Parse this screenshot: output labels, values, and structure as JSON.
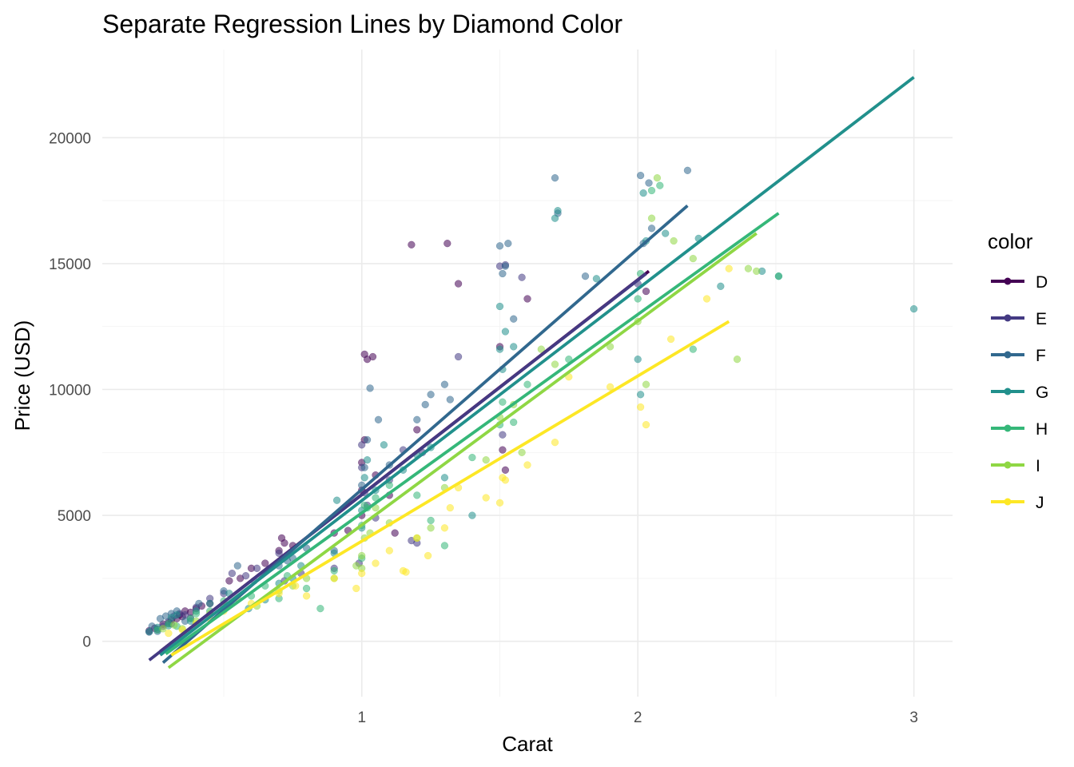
{
  "chart_data": {
    "type": "scatter",
    "title": "Separate Regression Lines by Diamond Color",
    "xlabel": "Carat",
    "ylabel": "Price (USD)",
    "xlim": [
      0.06,
      3.14
    ],
    "ylim": [
      -2200,
      23500
    ],
    "x_ticks": [
      1,
      2,
      3
    ],
    "x_tick_labels": [
      "1",
      "2",
      "3"
    ],
    "y_ticks": [
      0,
      5000,
      10000,
      15000,
      20000
    ],
    "y_tick_labels": [
      "0",
      "5000",
      "10000",
      "15000",
      "20000"
    ],
    "x_minor_ticks": [
      0.5,
      1.5,
      2.5
    ],
    "y_minor_ticks": [
      2500,
      7500,
      12500,
      17500
    ],
    "grid": true,
    "legend": {
      "title": "color",
      "position": "right"
    },
    "series": [
      {
        "name": "D",
        "color": "#440154",
        "line": {
          "x": [
            0.27,
            2.04
          ],
          "y": [
            -400,
            14700
          ]
        },
        "points": [
          [
            0.23,
            420
          ],
          [
            0.25,
            520
          ],
          [
            0.28,
            680
          ],
          [
            0.3,
            720
          ],
          [
            0.31,
            850
          ],
          [
            0.33,
            900
          ],
          [
            0.34,
            1050
          ],
          [
            0.35,
            980
          ],
          [
            0.36,
            1200
          ],
          [
            0.38,
            1150
          ],
          [
            0.4,
            1300
          ],
          [
            0.42,
            1400
          ],
          [
            0.45,
            1500
          ],
          [
            0.52,
            2400
          ],
          [
            0.56,
            2500
          ],
          [
            0.6,
            2900
          ],
          [
            0.65,
            3100
          ],
          [
            0.7,
            3600
          ],
          [
            0.71,
            4100
          ],
          [
            0.72,
            3900
          ],
          [
            0.75,
            3800
          ],
          [
            0.9,
            4300
          ],
          [
            0.95,
            4400
          ],
          [
            1.0,
            5000
          ],
          [
            1.0,
            6000
          ],
          [
            1.0,
            7100
          ],
          [
            1.01,
            8000
          ],
          [
            1.01,
            11400
          ],
          [
            1.02,
            11200
          ],
          [
            1.04,
            11300
          ],
          [
            1.05,
            6600
          ],
          [
            1.1,
            5800
          ],
          [
            1.12,
            4300
          ],
          [
            1.18,
            15750
          ],
          [
            1.2,
            8400
          ],
          [
            1.31,
            15800
          ],
          [
            1.35,
            14200
          ],
          [
            1.5,
            11700
          ],
          [
            1.51,
            7600
          ],
          [
            1.52,
            6800
          ],
          [
            1.6,
            13600
          ],
          [
            2.03,
            13900
          ]
        ]
      },
      {
        "name": "E",
        "color": "#443A83",
        "line": {
          "x": [
            0.23,
            2.03
          ],
          "y": [
            -750,
            14600
          ]
        },
        "points": [
          [
            0.23,
            370
          ],
          [
            0.26,
            480
          ],
          [
            0.28,
            600
          ],
          [
            0.3,
            780
          ],
          [
            0.31,
            700
          ],
          [
            0.32,
            1000
          ],
          [
            0.34,
            1100
          ],
          [
            0.36,
            1050
          ],
          [
            0.38,
            920
          ],
          [
            0.4,
            1350
          ],
          [
            0.45,
            1700
          ],
          [
            0.5,
            1900
          ],
          [
            0.53,
            2700
          ],
          [
            0.58,
            2600
          ],
          [
            0.62,
            2900
          ],
          [
            0.7,
            3500
          ],
          [
            0.72,
            2400
          ],
          [
            0.78,
            2700
          ],
          [
            0.9,
            2900
          ],
          [
            0.99,
            3100
          ],
          [
            1.0,
            6900
          ],
          [
            1.0,
            7800
          ],
          [
            1.01,
            5900
          ],
          [
            1.02,
            5400
          ],
          [
            1.05,
            4900
          ],
          [
            1.1,
            6400
          ],
          [
            1.15,
            7600
          ],
          [
            1.18,
            4000
          ],
          [
            1.2,
            3900
          ],
          [
            1.22,
            7500
          ],
          [
            1.35,
            11300
          ],
          [
            1.5,
            14900
          ],
          [
            1.52,
            14950
          ],
          [
            1.58,
            14450
          ],
          [
            1.51,
            8200
          ],
          [
            2.0,
            14200
          ]
        ]
      },
      {
        "name": "F",
        "color": "#31688E",
        "line": {
          "x": [
            0.28,
            2.18
          ],
          "y": [
            -850,
            17300
          ]
        },
        "points": [
          [
            0.24,
            600
          ],
          [
            0.26,
            400
          ],
          [
            0.27,
            900
          ],
          [
            0.29,
            1000
          ],
          [
            0.31,
            1100
          ],
          [
            0.33,
            1200
          ],
          [
            0.36,
            800
          ],
          [
            0.41,
            1500
          ],
          [
            0.5,
            2000
          ],
          [
            0.55,
            3000
          ],
          [
            0.61,
            2400
          ],
          [
            0.7,
            3000
          ],
          [
            0.73,
            3200
          ],
          [
            0.75,
            3300
          ],
          [
            0.8,
            3700
          ],
          [
            0.9,
            3600
          ],
          [
            1.0,
            6200
          ],
          [
            1.01,
            6900
          ],
          [
            1.02,
            8000
          ],
          [
            1.03,
            10050
          ],
          [
            1.06,
            8800
          ],
          [
            1.1,
            7000
          ],
          [
            1.2,
            8800
          ],
          [
            1.23,
            9400
          ],
          [
            1.25,
            9800
          ],
          [
            1.3,
            10200
          ],
          [
            1.32,
            9600
          ],
          [
            1.5,
            15700
          ],
          [
            1.51,
            14600
          ],
          [
            1.52,
            14900
          ],
          [
            1.53,
            15800
          ],
          [
            1.55,
            12800
          ],
          [
            1.7,
            18400
          ],
          [
            1.71,
            17000
          ],
          [
            1.81,
            14500
          ],
          [
            2.01,
            18500
          ],
          [
            2.04,
            18200
          ],
          [
            2.05,
            16400
          ],
          [
            2.18,
            18700
          ],
          [
            2.02,
            15800
          ]
        ]
      },
      {
        "name": "G",
        "color": "#21908C",
        "line": {
          "x": [
            0.27,
            3.0
          ],
          "y": [
            -550,
            22400
          ]
        },
        "points": [
          [
            0.23,
            380
          ],
          [
            0.26,
            550
          ],
          [
            0.3,
            620
          ],
          [
            0.31,
            940
          ],
          [
            0.33,
            1050
          ],
          [
            0.38,
            800
          ],
          [
            0.4,
            1200
          ],
          [
            0.45,
            1500
          ],
          [
            0.52,
            1900
          ],
          [
            0.59,
            1300
          ],
          [
            0.65,
            1650
          ],
          [
            0.7,
            2300
          ],
          [
            0.75,
            2500
          ],
          [
            0.78,
            3000
          ],
          [
            0.9,
            3500
          ],
          [
            0.91,
            5600
          ],
          [
            1.0,
            4500
          ],
          [
            1.0,
            5200
          ],
          [
            1.01,
            6500
          ],
          [
            1.02,
            7200
          ],
          [
            1.05,
            6000
          ],
          [
            1.08,
            7800
          ],
          [
            1.15,
            6800
          ],
          [
            1.2,
            7400
          ],
          [
            1.25,
            7700
          ],
          [
            1.3,
            6500
          ],
          [
            1.4,
            5000
          ],
          [
            1.5,
            13300
          ],
          [
            1.5,
            11600
          ],
          [
            1.51,
            10800
          ],
          [
            1.52,
            12300
          ],
          [
            1.55,
            11700
          ],
          [
            1.7,
            16800
          ],
          [
            1.71,
            17100
          ],
          [
            1.85,
            14400
          ],
          [
            2.0,
            11200
          ],
          [
            2.01,
            9800
          ],
          [
            2.02,
            17800
          ],
          [
            2.03,
            15900
          ],
          [
            2.1,
            16200
          ],
          [
            2.22,
            16000
          ],
          [
            2.45,
            14700
          ],
          [
            2.51,
            14500
          ],
          [
            3.0,
            13200
          ],
          [
            2.3,
            14100
          ]
        ]
      },
      {
        "name": "H",
        "color": "#35B779",
        "line": {
          "x": [
            0.29,
            2.51
          ],
          "y": [
            -500,
            17000
          ]
        },
        "points": [
          [
            0.26,
            450
          ],
          [
            0.3,
            700
          ],
          [
            0.33,
            600
          ],
          [
            0.38,
            900
          ],
          [
            0.4,
            1100
          ],
          [
            0.45,
            1200
          ],
          [
            0.5,
            1600
          ],
          [
            0.6,
            1800
          ],
          [
            0.65,
            2200
          ],
          [
            0.7,
            1700
          ],
          [
            0.73,
            2600
          ],
          [
            0.8,
            2100
          ],
          [
            0.85,
            1300
          ],
          [
            0.9,
            2800
          ],
          [
            1.0,
            3300
          ],
          [
            1.0,
            4600
          ],
          [
            1.01,
            5400
          ],
          [
            1.02,
            5300
          ],
          [
            1.05,
            5700
          ],
          [
            1.1,
            6200
          ],
          [
            1.2,
            5800
          ],
          [
            1.25,
            4800
          ],
          [
            1.3,
            3800
          ],
          [
            1.4,
            7300
          ],
          [
            1.5,
            8600
          ],
          [
            1.51,
            9500
          ],
          [
            1.55,
            8700
          ],
          [
            1.6,
            10200
          ],
          [
            1.75,
            11200
          ],
          [
            2.0,
            13600
          ],
          [
            2.01,
            14600
          ],
          [
            2.05,
            17900
          ],
          [
            2.08,
            18100
          ],
          [
            2.2,
            11600
          ],
          [
            2.51,
            14500
          ]
        ]
      },
      {
        "name": "I",
        "color": "#8FD744",
        "line": {
          "x": [
            0.3,
            2.43
          ],
          "y": [
            -1050,
            16200
          ]
        },
        "points": [
          [
            0.28,
            500
          ],
          [
            0.32,
            650
          ],
          [
            0.35,
            500
          ],
          [
            0.4,
            800
          ],
          [
            0.45,
            1100
          ],
          [
            0.5,
            1400
          ],
          [
            0.55,
            1700
          ],
          [
            0.62,
            1400
          ],
          [
            0.7,
            2000
          ],
          [
            0.75,
            2200
          ],
          [
            0.8,
            2500
          ],
          [
            0.9,
            2500
          ],
          [
            0.98,
            3000
          ],
          [
            1.0,
            2900
          ],
          [
            1.0,
            3400
          ],
          [
            1.01,
            4100
          ],
          [
            1.03,
            4300
          ],
          [
            1.05,
            5300
          ],
          [
            1.1,
            4700
          ],
          [
            1.2,
            4100
          ],
          [
            1.25,
            4500
          ],
          [
            1.3,
            6100
          ],
          [
            1.45,
            7200
          ],
          [
            1.5,
            8900
          ],
          [
            1.55,
            9400
          ],
          [
            1.58,
            7500
          ],
          [
            1.65,
            11600
          ],
          [
            1.7,
            11000
          ],
          [
            1.9,
            11700
          ],
          [
            2.0,
            12700
          ],
          [
            2.03,
            10200
          ],
          [
            2.05,
            16800
          ],
          [
            2.07,
            18400
          ],
          [
            2.13,
            15900
          ],
          [
            2.2,
            15200
          ],
          [
            2.36,
            11200
          ],
          [
            2.4,
            14800
          ],
          [
            2.43,
            14700
          ]
        ]
      },
      {
        "name": "J",
        "color": "#FDE725",
        "line": {
          "x": [
            0.31,
            2.33
          ],
          "y": [
            -550,
            12700
          ]
        },
        "points": [
          [
            0.3,
            320
          ],
          [
            0.35,
            450
          ],
          [
            0.4,
            700
          ],
          [
            0.45,
            900
          ],
          [
            0.5,
            1200
          ],
          [
            0.6,
            1500
          ],
          [
            0.7,
            1900
          ],
          [
            0.76,
            2200
          ],
          [
            0.8,
            1800
          ],
          [
            0.9,
            2500
          ],
          [
            0.98,
            2100
          ],
          [
            1.0,
            2700
          ],
          [
            1.05,
            3100
          ],
          [
            1.1,
            3600
          ],
          [
            1.15,
            2800
          ],
          [
            1.16,
            2750
          ],
          [
            1.2,
            4100
          ],
          [
            1.24,
            3400
          ],
          [
            1.3,
            4500
          ],
          [
            1.32,
            5300
          ],
          [
            1.35,
            6100
          ],
          [
            1.45,
            5700
          ],
          [
            1.5,
            5500
          ],
          [
            1.51,
            6500
          ],
          [
            1.52,
            6400
          ],
          [
            1.6,
            7000
          ],
          [
            1.7,
            7900
          ],
          [
            1.75,
            10500
          ],
          [
            1.9,
            10100
          ],
          [
            2.01,
            9300
          ],
          [
            2.03,
            8600
          ],
          [
            2.12,
            12000
          ],
          [
            2.25,
            13600
          ],
          [
            2.33,
            14800
          ]
        ]
      }
    ]
  }
}
